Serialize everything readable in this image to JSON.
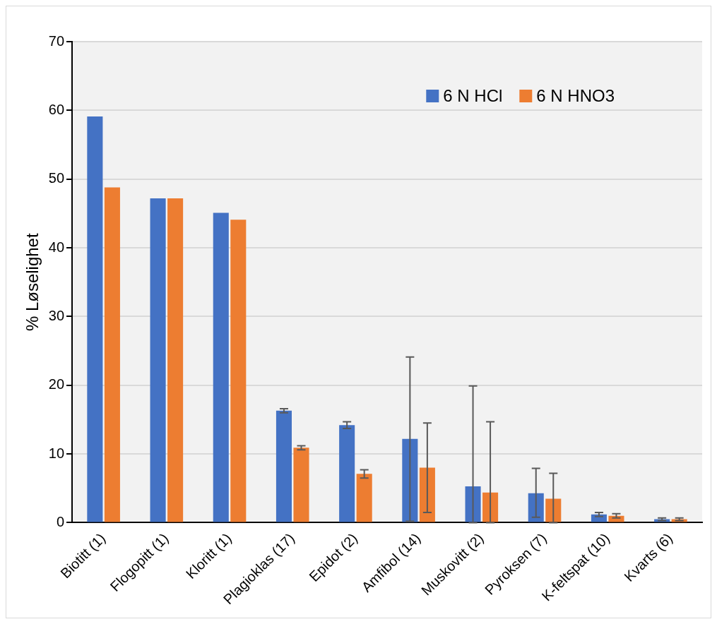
{
  "chart_data": {
    "type": "bar",
    "ylabel": "% Løselighet",
    "categories": [
      "Biotitt (1)",
      "Flogopitt (1)",
      "Kloritt (1)",
      "Plagioklas (17)",
      "Epidot (2)",
      "Amfibol (14)",
      "Muskovitt (2)",
      "Pyroksen (7)",
      "K-feltspat (10)",
      "Kvarts (6)"
    ],
    "series": [
      {
        "name": "6 N HCl",
        "color": "#4472c4",
        "values": [
          59.1,
          47.2,
          45.1,
          16.3,
          14.2,
          12.2,
          5.3,
          4.3,
          1.2,
          0.5
        ],
        "errors": [
          null,
          null,
          null,
          [
            16.0,
            16.6
          ],
          [
            13.7,
            14.7
          ],
          [
            0.2,
            24.1
          ],
          [
            0,
            19.9
          ],
          [
            0.8,
            7.9
          ],
          [
            0.9,
            1.5
          ],
          [
            0.3,
            0.7
          ]
        ]
      },
      {
        "name": "6 N HNO3",
        "color": "#ed7d31",
        "values": [
          48.8,
          47.2,
          44.1,
          10.9,
          7.1,
          8.0,
          4.4,
          3.5,
          1.0,
          0.5
        ],
        "errors": [
          null,
          null,
          null,
          [
            10.6,
            11.2
          ],
          [
            6.5,
            7.7
          ],
          [
            1.5,
            14.5
          ],
          [
            0,
            14.7
          ],
          [
            0,
            7.2
          ],
          [
            0.7,
            1.3
          ],
          [
            0.3,
            0.7
          ]
        ]
      }
    ],
    "ylim": [
      0,
      70
    ],
    "yticks": [
      0,
      10,
      20,
      30,
      40,
      50,
      60,
      70
    ],
    "grid": "y",
    "legend": "top right"
  }
}
